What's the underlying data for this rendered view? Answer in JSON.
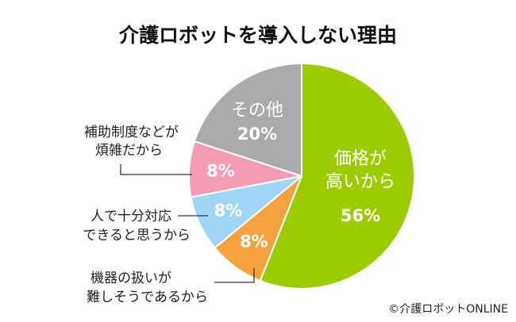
{
  "title": "介護ロボットを導入しない理由",
  "credit": "©介護ロボットONLINE",
  "chart_data": {
    "type": "pie",
    "title": "介護ロボットを導入しない理由",
    "start": "12 o'clock, clockwise",
    "slices": [
      {
        "label": "価格が高いから",
        "label_lines": [
          "価格が",
          "高いから"
        ],
        "value": 56,
        "display": "56%",
        "color": "#9ccc00"
      },
      {
        "label": "機器の扱いが難しそうであるから",
        "label_lines": [
          "機器の扱いが",
          "難しそうであるから"
        ],
        "value": 8,
        "display": "8%",
        "color": "#f4a23f"
      },
      {
        "label": "人で十分対応できると思うから",
        "label_lines": [
          "人で十分対応",
          "できると思うから"
        ],
        "value": 8,
        "display": "8%",
        "color": "#9fd6f7"
      },
      {
        "label": "補助制度などが煩雑だから",
        "label_lines": [
          "補助制度などが",
          "煩雑だから"
        ],
        "value": 8,
        "display": "8%",
        "color": "#f49bb5"
      },
      {
        "label": "その他",
        "label_lines": [
          "その他"
        ],
        "value": 20,
        "display": "20%",
        "color": "#aaaaaa"
      }
    ]
  }
}
